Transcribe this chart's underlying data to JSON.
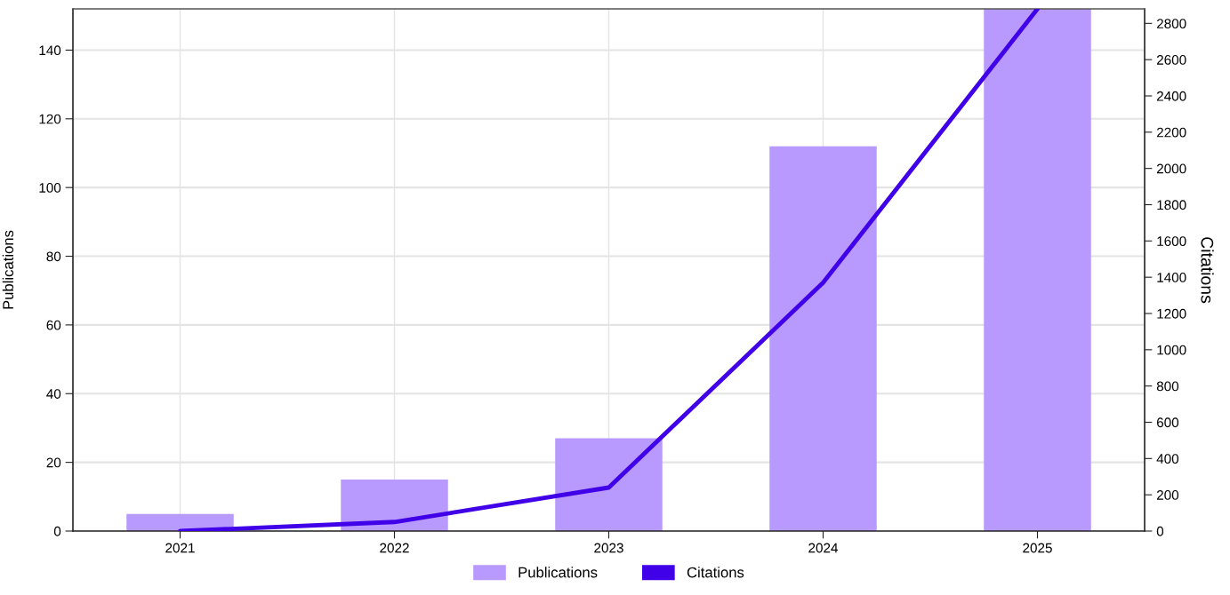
{
  "chart_data": {
    "type": "bar",
    "categories": [
      "2021",
      "2022",
      "2023",
      "2024",
      "2025"
    ],
    "ylabel": "Publications",
    "y2label": "Citations",
    "ylim": [
      0,
      152
    ],
    "yticks": [
      0,
      20,
      40,
      60,
      80,
      100,
      120,
      140
    ],
    "y2lim": [
      0,
      2880
    ],
    "y2ticks": [
      0,
      200,
      400,
      600,
      800,
      1000,
      1200,
      1400,
      1600,
      1800,
      2000,
      2200,
      2400,
      2600,
      2800
    ],
    "grid": true,
    "legend": "bottom",
    "series": [
      {
        "name": "Publications",
        "color": "#b899fd",
        "values": [
          5,
          15,
          27,
          112,
          152
        ]
      },
      {
        "name": "Citations",
        "type": "line",
        "axis": "y2",
        "color": "#4000e8",
        "values": [
          0,
          50,
          240,
          1370,
          2880
        ]
      }
    ]
  }
}
